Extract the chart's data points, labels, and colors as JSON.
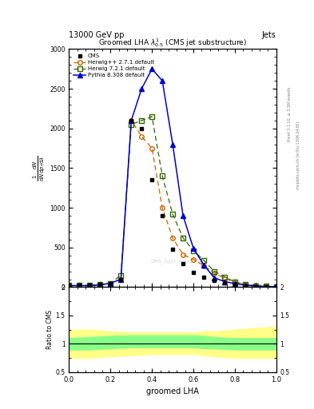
{
  "header_left": "13000 GeV pp",
  "header_right": "Jets",
  "title": "Groomed LHA $\\lambda^{1}_{0.5}$ (CMS jet substructure)",
  "xlabel": "groomed LHA",
  "ylabel_line1": "mathrm d$^2$N",
  "ylabel_ratio": "Ratio to CMS",
  "watermark": "CMS_2021_I1920187",
  "rivet_text": "Rivet 3.1.10, ≥ 3.3M events",
  "mcplots_text": "mcplots.cern.ch [arXiv:1306.3436]",
  "x_data": [
    0.0,
    0.05,
    0.1,
    0.15,
    0.2,
    0.25,
    0.3,
    0.35,
    0.4,
    0.45,
    0.5,
    0.55,
    0.6,
    0.65,
    0.7,
    0.75,
    0.8,
    0.85,
    0.9,
    0.95,
    1.0
  ],
  "cms_y": [
    20,
    20,
    20,
    30,
    50,
    100,
    2100,
    2000,
    1350,
    900,
    480,
    300,
    190,
    130,
    85,
    55,
    30,
    18,
    8,
    4,
    15
  ],
  "herwig_pp_y": [
    20,
    20,
    20,
    30,
    50,
    100,
    2100,
    1900,
    1750,
    1000,
    620,
    410,
    350,
    270,
    180,
    110,
    60,
    35,
    20,
    10,
    8
  ],
  "herwig7_y": [
    20,
    20,
    20,
    30,
    50,
    150,
    2050,
    2100,
    2150,
    1400,
    920,
    620,
    460,
    340,
    200,
    130,
    65,
    38,
    18,
    10,
    8
  ],
  "pythia_y": [
    20,
    20,
    20,
    30,
    50,
    100,
    2100,
    2500,
    2750,
    2600,
    1800,
    900,
    490,
    280,
    120,
    70,
    45,
    25,
    14,
    8,
    8
  ],
  "ratio_x": [
    0.0,
    0.1,
    0.2,
    0.3,
    0.4,
    0.5,
    0.6,
    0.65,
    0.7,
    0.8,
    0.9,
    1.0
  ],
  "ratio_yellow_low": [
    0.75,
    0.75,
    0.78,
    0.8,
    0.82,
    0.82,
    0.82,
    0.8,
    0.78,
    0.75,
    0.75,
    0.75
  ],
  "ratio_yellow_high": [
    1.25,
    1.25,
    1.22,
    1.2,
    1.2,
    1.2,
    1.2,
    1.22,
    1.22,
    1.25,
    1.28,
    1.3
  ],
  "ratio_green_low": [
    0.9,
    0.9,
    0.92,
    0.94,
    0.94,
    0.94,
    0.94,
    0.92,
    0.92,
    0.9,
    0.9,
    0.9
  ],
  "ratio_green_high": [
    1.1,
    1.12,
    1.14,
    1.15,
    1.15,
    1.15,
    1.15,
    1.14,
    1.12,
    1.1,
    1.1,
    1.1
  ],
  "ylim_main": [
    0,
    3000
  ],
  "ylim_ratio": [
    0.5,
    2.0
  ],
  "yticks_main": [
    0,
    500,
    1000,
    1500,
    2000,
    2500,
    3000
  ],
  "yticks_ratio": [
    0.5,
    1.0,
    1.5,
    2.0
  ],
  "ytick_labels_ratio": [
    "0.5",
    "1",
    "1.5",
    "2"
  ],
  "cms_color": "#000000",
  "herwig_pp_color": "#cc6600",
  "herwig7_color": "#336600",
  "pythia_color": "#0000cc",
  "yellow_color": "#ffff88",
  "green_color": "#88ff88"
}
